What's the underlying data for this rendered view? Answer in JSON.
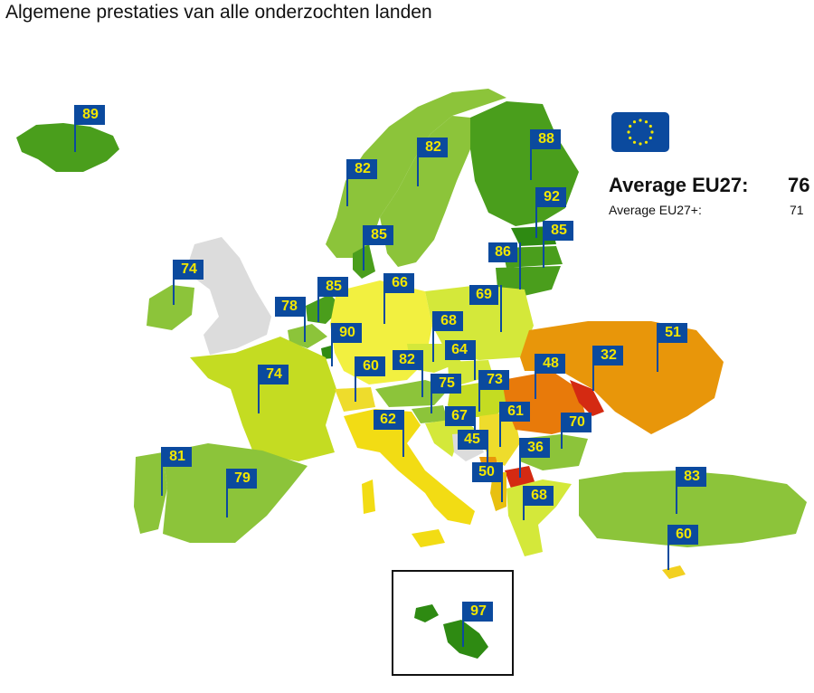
{
  "title": "Algemene prestaties van alle onderzochten landen",
  "legend": {
    "average_eu27_label": "Average EU27:",
    "average_eu27_value": "76",
    "average_eu27plus_label": "Average EU27+:",
    "average_eu27plus_value": "71"
  },
  "colors": {
    "flag_bg": "#0b4a9e",
    "flag_text": "#f2e600",
    "grey_nodata": "#dcdcdc",
    "sea": "#ffffff"
  },
  "countries": [
    {
      "id": "iceland",
      "value": "89"
    },
    {
      "id": "norway",
      "value": "82"
    },
    {
      "id": "sweden",
      "value": "82"
    },
    {
      "id": "finland",
      "value": "88"
    },
    {
      "id": "estonia",
      "value": "92"
    },
    {
      "id": "latvia",
      "value": "85"
    },
    {
      "id": "lithuania",
      "value": "86"
    },
    {
      "id": "denmark",
      "value": "85"
    },
    {
      "id": "ireland",
      "value": "74"
    },
    {
      "id": "netherlands",
      "value": "85"
    },
    {
      "id": "belgium",
      "value": "78"
    },
    {
      "id": "germany",
      "value": "66"
    },
    {
      "id": "poland",
      "value": "69"
    },
    {
      "id": "luxembourg",
      "value": "90"
    },
    {
      "id": "czechia",
      "value": "68"
    },
    {
      "id": "slovakia",
      "value": "64"
    },
    {
      "id": "switzerland",
      "value": "60"
    },
    {
      "id": "austria",
      "value": "82"
    },
    {
      "id": "hungary",
      "value": "73"
    },
    {
      "id": "slovenia",
      "value": "75"
    },
    {
      "id": "croatia",
      "value": "67"
    },
    {
      "id": "bosnia",
      "value": "45"
    },
    {
      "id": "serbia",
      "value": "61"
    },
    {
      "id": "ukraine",
      "value": "51"
    },
    {
      "id": "moldova",
      "value": "32"
    },
    {
      "id": "romania",
      "value": "48"
    },
    {
      "id": "bulgaria",
      "value": "70"
    },
    {
      "id": "north-macedonia",
      "value": "36"
    },
    {
      "id": "albania",
      "value": "50"
    },
    {
      "id": "greece",
      "value": "68"
    },
    {
      "id": "france",
      "value": "74"
    },
    {
      "id": "italy",
      "value": "62"
    },
    {
      "id": "portugal",
      "value": "81"
    },
    {
      "id": "spain",
      "value": "79"
    },
    {
      "id": "turkey",
      "value": "83"
    },
    {
      "id": "cyprus",
      "value": "60"
    },
    {
      "id": "malta",
      "value": "97"
    }
  ]
}
